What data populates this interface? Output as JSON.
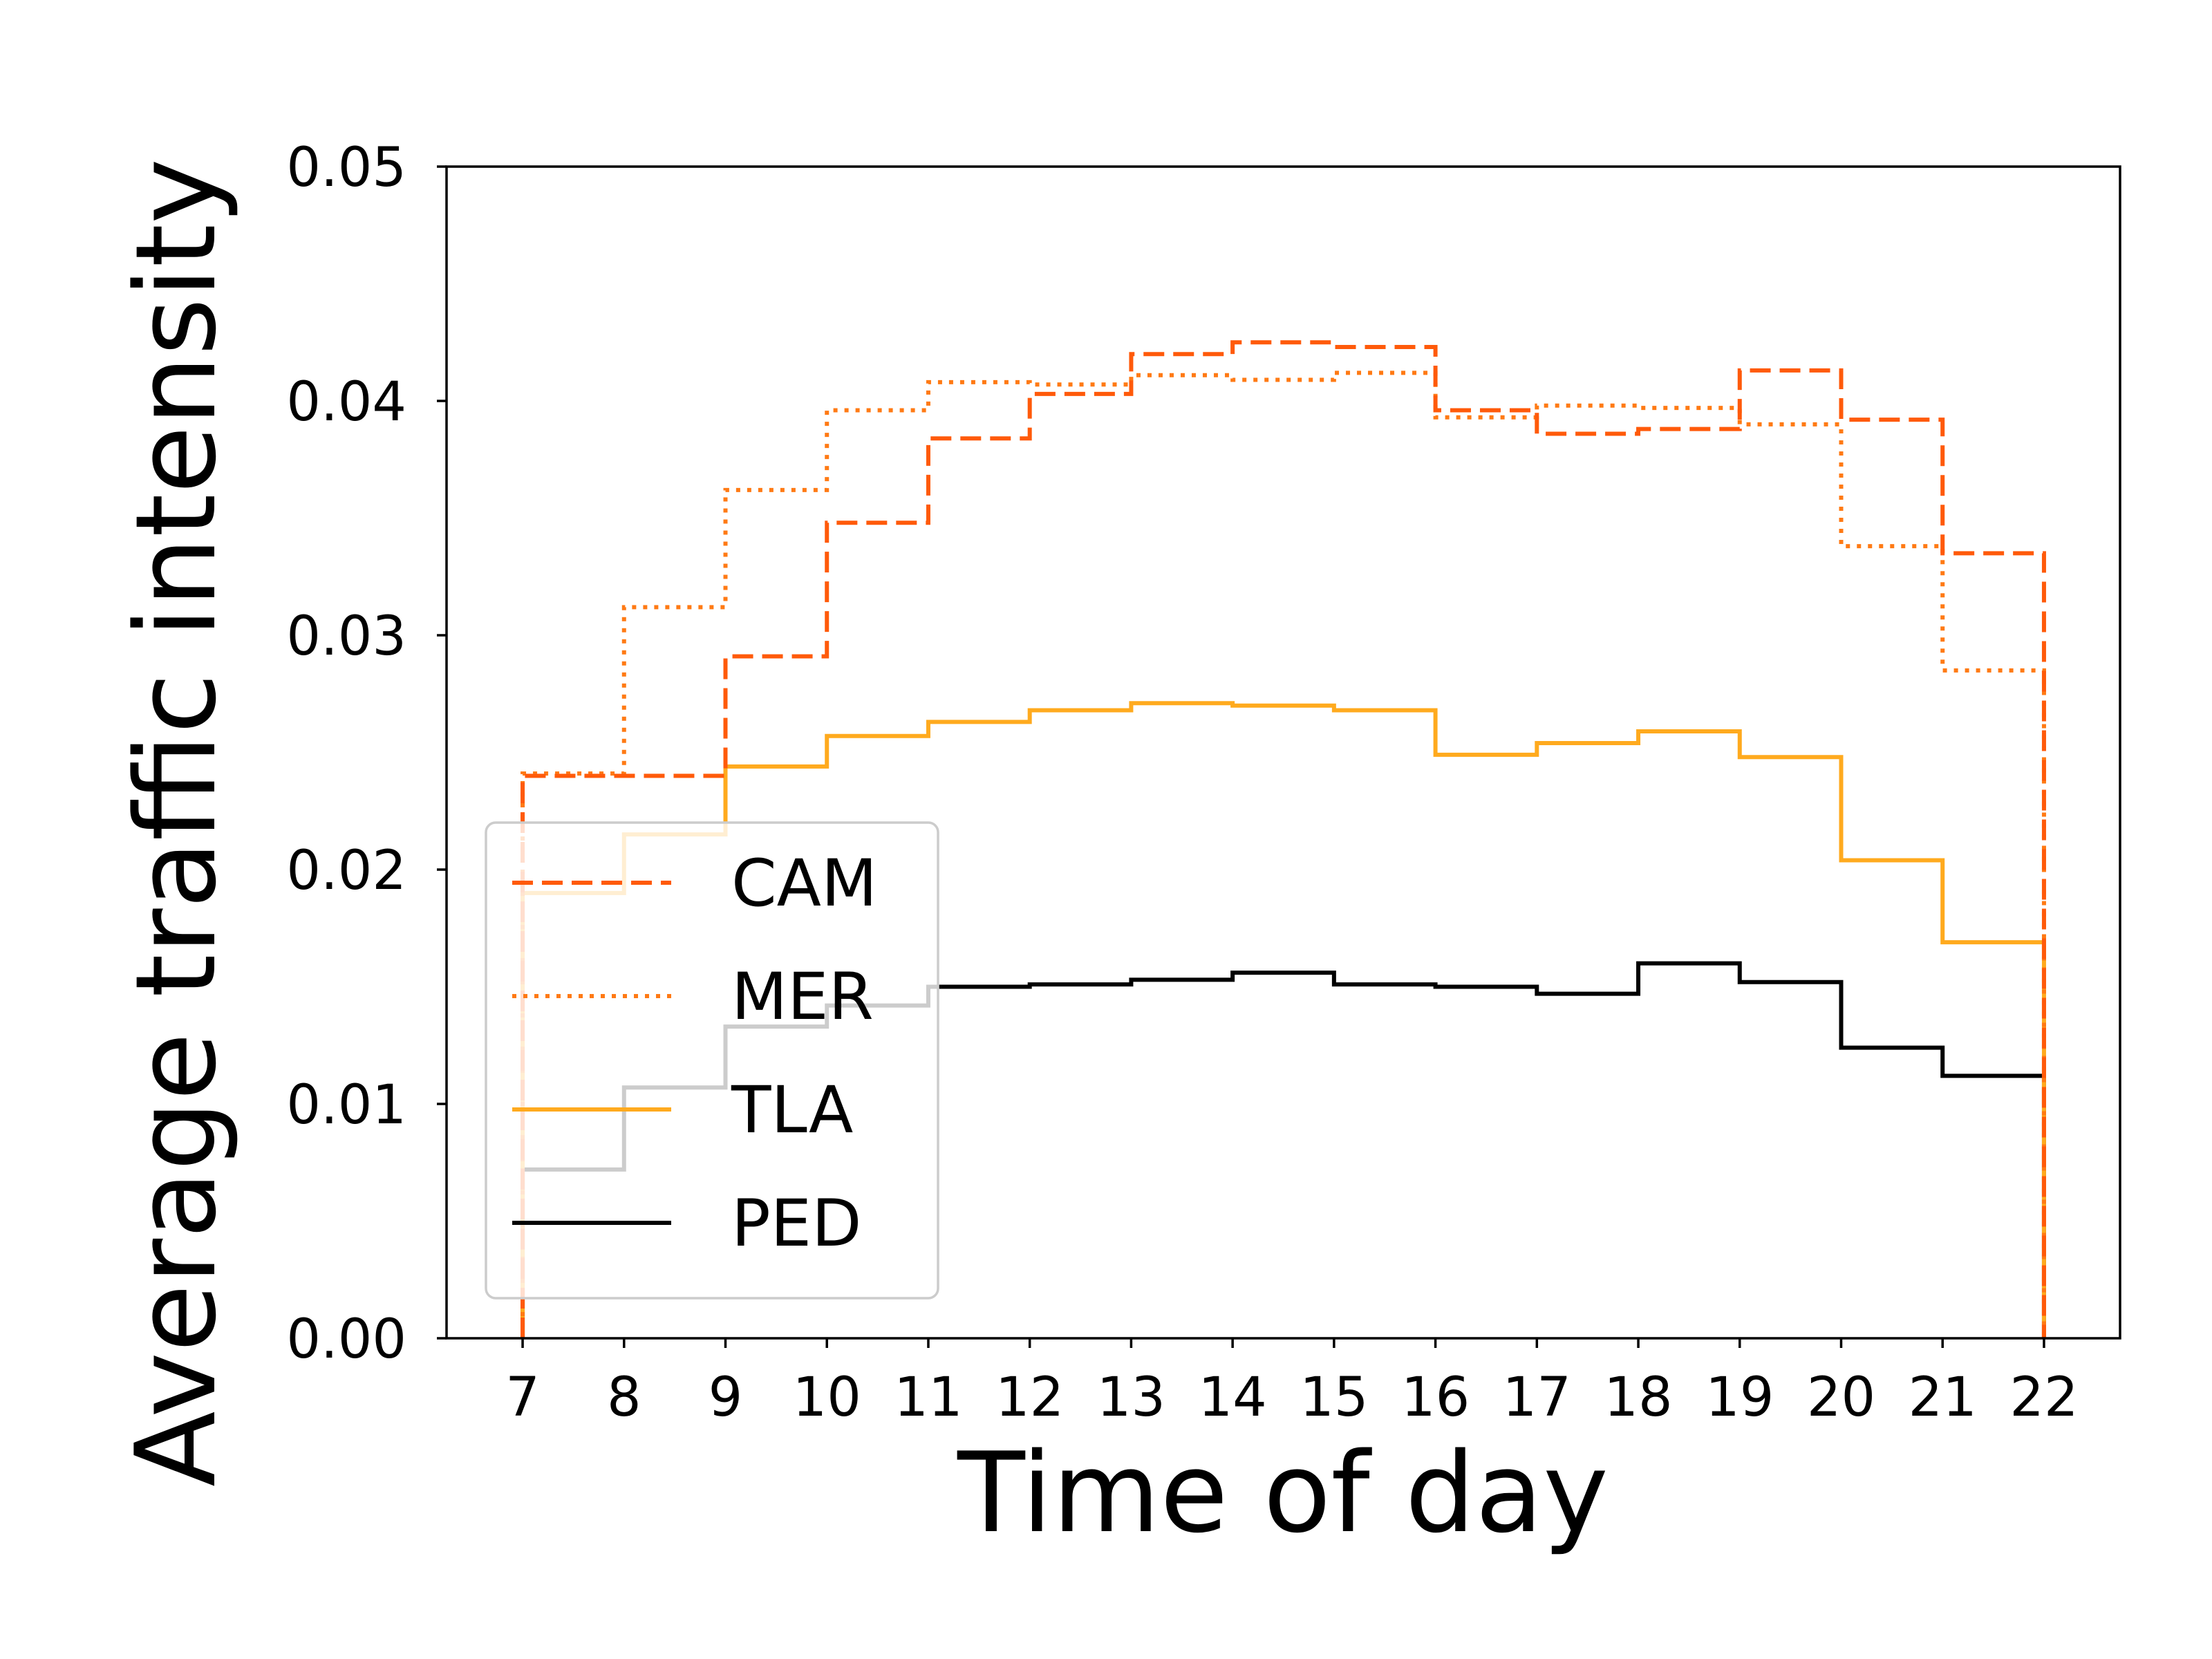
{
  "chart_data": {
    "type": "line",
    "drawstyle": "steps",
    "title": "",
    "xlabel": "Time of day",
    "ylabel": "Average traffic intensity",
    "xlim": [
      6.25,
      22.75
    ],
    "ylim": [
      0,
      0.05
    ],
    "x_ticks": [
      7,
      8,
      9,
      10,
      11,
      12,
      13,
      14,
      15,
      16,
      17,
      18,
      19,
      20,
      21,
      22
    ],
    "y_ticks": [
      0.0,
      0.01,
      0.02,
      0.03,
      0.04,
      0.05
    ],
    "y_tick_labels": [
      "0.00",
      "0.01",
      "0.02",
      "0.03",
      "0.04",
      "0.05"
    ],
    "grid": false,
    "legend_location": "lower-left",
    "bin_edges": [
      7,
      8,
      9,
      10,
      11,
      12,
      13,
      14,
      15,
      16,
      17,
      18,
      19,
      20,
      21,
      22
    ],
    "series": [
      {
        "name": "CAM",
        "style": "dashed",
        "color": "#ff5a0a",
        "values": [
          0.024,
          0.024,
          0.0291,
          0.0348,
          0.0384,
          0.0403,
          0.042,
          0.0425,
          0.0423,
          0.0396,
          0.0386,
          0.0388,
          0.0413,
          0.0392,
          0.0335
        ]
      },
      {
        "name": "MER",
        "style": "dotted",
        "color": "#ff7a14",
        "values": [
          0.0241,
          0.0312,
          0.0362,
          0.0396,
          0.0408,
          0.0407,
          0.0411,
          0.0409,
          0.0412,
          0.0393,
          0.0398,
          0.0397,
          0.039,
          0.0338,
          0.0285
        ]
      },
      {
        "name": "TLA",
        "style": "solid",
        "color": "#ffaa1e",
        "values": [
          0.019,
          0.0215,
          0.0244,
          0.0257,
          0.0263,
          0.0268,
          0.0271,
          0.027,
          0.0268,
          0.0249,
          0.0254,
          0.0259,
          0.0248,
          0.0204,
          0.0169
        ]
      },
      {
        "name": "PED",
        "style": "solid",
        "color": "#000000",
        "values": [
          0.0072,
          0.0107,
          0.0133,
          0.0142,
          0.015,
          0.0151,
          0.0153,
          0.0156,
          0.0151,
          0.015,
          0.0147,
          0.016,
          0.0152,
          0.0124,
          0.0112
        ]
      }
    ]
  }
}
